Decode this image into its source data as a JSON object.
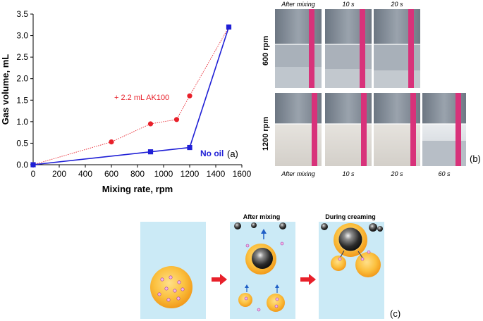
{
  "chart_data": {
    "type": "line",
    "title": "",
    "xlabel": "Mixing rate, rpm",
    "ylabel": "Gas volume, mL",
    "xlim": [
      0,
      1600
    ],
    "ylim": [
      0,
      3.5
    ],
    "x_ticks": [
      0,
      200,
      400,
      600,
      800,
      1000,
      1200,
      1400,
      1600
    ],
    "y_ticks": [
      0.0,
      0.5,
      1.0,
      1.5,
      2.0,
      2.5,
      3.0,
      3.5
    ],
    "x_tick_labels": [
      "0",
      "200",
      "400",
      "600",
      "800",
      "1000",
      "1200",
      "1400",
      "1600"
    ],
    "y_tick_labels": [
      "0.0",
      "0.5",
      "1.0",
      "1.5",
      "2.0",
      "2.5",
      "3.0",
      "3.5"
    ],
    "grid": false,
    "series": [
      {
        "name": "+ 2.2 mL AK100",
        "color": "#e8202a",
        "marker": "circle",
        "line": "dotted",
        "x": [
          0,
          600,
          900,
          1100,
          1200,
          1500
        ],
        "values": [
          0.0,
          0.53,
          0.95,
          1.05,
          1.6,
          3.2
        ]
      },
      {
        "name": "No oil",
        "color": "#1f1fd6",
        "marker": "square",
        "line": "solid",
        "x": [
          0,
          900,
          1200,
          1500
        ],
        "values": [
          0.0,
          0.3,
          0.4,
          3.2
        ]
      }
    ]
  },
  "panel_labels": {
    "a": "(a)",
    "b": "(b)",
    "c": "(c)"
  },
  "photos": {
    "top_headers": [
      "After mixing",
      "10 s",
      "20 s"
    ],
    "bottom_headers": [
      "After mixing",
      "10 s",
      "20 s",
      "60 s"
    ],
    "row_labels": [
      "600 rpm",
      "1200 rpm"
    ]
  },
  "schematic": {
    "stage_titles": [
      "After mixing",
      "During creaming"
    ],
    "colors": {
      "water": "#cbeaf6",
      "oil_drop": "#f7b52c",
      "bubble": "#2a2a2a",
      "arrow": "#e8202a",
      "rise_arrow": "#1f5fc6"
    }
  }
}
